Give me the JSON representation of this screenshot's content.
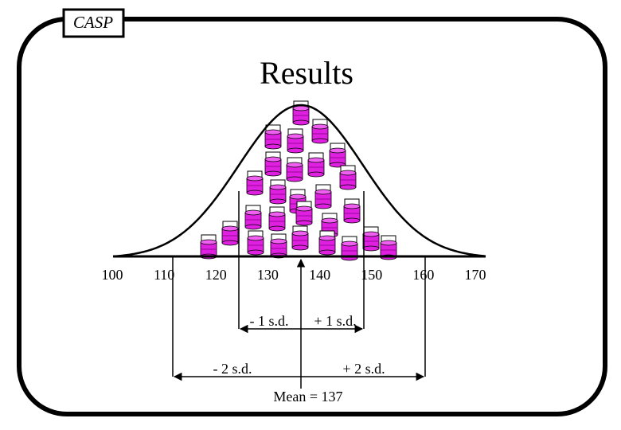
{
  "header": {
    "label": "CASP"
  },
  "title": "Results",
  "axis": {
    "labels": [
      100,
      110,
      120,
      130,
      140,
      150,
      160,
      170
    ]
  },
  "annotations": {
    "minus_1_sd": "- 1 s.d.",
    "plus_1_sd": "+ 1 s.d.",
    "minus_2_sd": "- 2 s.d.",
    "plus_2_sd": "+ 2 s.d.",
    "mean": "Mean = 137"
  }
}
